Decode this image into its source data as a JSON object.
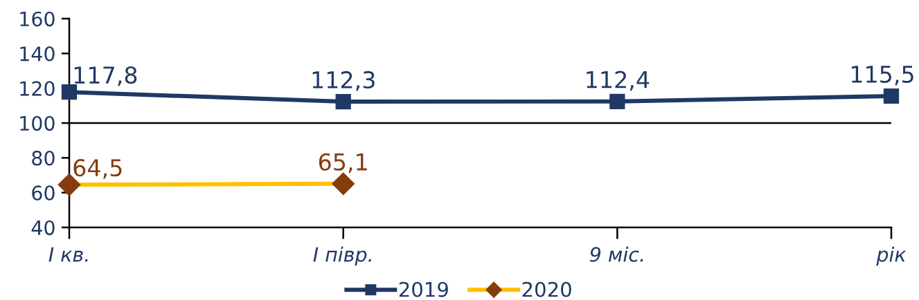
{
  "chart_data": {
    "type": "line",
    "categories": [
      "I кв.",
      "I півр.",
      "9 міс.",
      "рік"
    ],
    "ylim": [
      40,
      160
    ],
    "yticks": [
      40,
      60,
      80,
      100,
      120,
      140,
      160
    ],
    "series": [
      {
        "name": "2019",
        "color": "#203864",
        "marker": "square",
        "values": [
          117.8,
          112.3,
          112.4,
          115.5
        ],
        "value_labels": [
          "117,8",
          "112,3",
          "112,4",
          "115,5"
        ]
      },
      {
        "name": "2020",
        "color": "#ffc000",
        "colors": [
          "#843c0c",
          "#843c0c",
          null,
          null
        ],
        "marker": "diamond",
        "values": [
          64.5,
          65.1,
          null,
          null
        ],
        "value_labels": [
          "64,5",
          "65,1",
          null,
          null
        ]
      }
    ],
    "ref_lines": [
      {
        "axis": "y",
        "value": 100,
        "color": "#000000"
      }
    ],
    "legend": "bottom",
    "grid": false,
    "line_style": "solid"
  }
}
